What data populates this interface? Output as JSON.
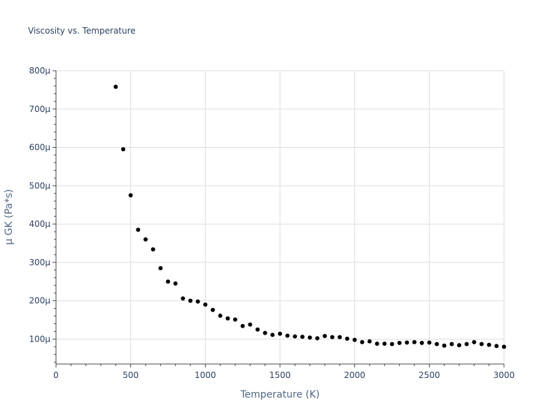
{
  "chart_data": {
    "type": "scatter",
    "title": "Viscosity vs. Temperature",
    "xlabel": "Temperature (K)",
    "ylabel": "μ GK (Pa*s)",
    "xlim": [
      0,
      3000
    ],
    "ylim": [
      3.5e-05,
      0.0008
    ],
    "grid": true,
    "x_ticks": [
      0,
      500,
      1000,
      1500,
      2000,
      2500,
      3000
    ],
    "x_tick_labels": [
      "0",
      "500",
      "1000",
      "1500",
      "2000",
      "2500",
      "3000"
    ],
    "y_ticks": [
      0.0001,
      0.0002,
      0.0003,
      0.0004,
      0.0005,
      0.0006,
      0.0007,
      0.0008
    ],
    "y_tick_labels": [
      "100μ",
      "200μ",
      "300μ",
      "400μ",
      "500μ",
      "600μ",
      "700μ",
      "800μ"
    ],
    "marker_color": "#000000",
    "x": [
      400,
      450,
      500,
      550,
      600,
      650,
      700,
      750,
      800,
      850,
      900,
      950,
      1000,
      1050,
      1100,
      1150,
      1200,
      1250,
      1300,
      1350,
      1400,
      1450,
      1500,
      1550,
      1600,
      1650,
      1700,
      1750,
      1800,
      1850,
      1900,
      1950,
      2000,
      2050,
      2100,
      2150,
      2200,
      2250,
      2300,
      2350,
      2400,
      2450,
      2500,
      2550,
      2600,
      2650,
      2700,
      2750,
      2800,
      2850,
      2900,
      2950,
      3000
    ],
    "y": [
      0.000758,
      0.000595,
      0.000475,
      0.000385,
      0.00036,
      0.000334,
      0.000285,
      0.00025,
      0.000245,
      0.000206,
      0.0002,
      0.000198,
      0.00019,
      0.000176,
      0.000161,
      0.000154,
      0.000151,
      0.000134,
      0.000138,
      0.000125,
      0.000116,
      0.000111,
      0.000114,
      0.000109,
      0.000107,
      0.000106,
      0.000104,
      0.000102,
      0.000108,
      0.000105,
      0.000105,
      0.000101,
      9.8e-05,
      9.2e-05,
      9.4e-05,
      8.8e-05,
      8.8e-05,
      8.7e-05,
      9e-05,
      9.1e-05,
      9.2e-05,
      9e-05,
      9.1e-05,
      8.7e-05,
      8.3e-05,
      8.7e-05,
      8.4e-05,
      8.7e-05,
      9.2e-05,
      8.7e-05,
      8.5e-05,
      8.2e-05,
      8e-05
    ]
  }
}
